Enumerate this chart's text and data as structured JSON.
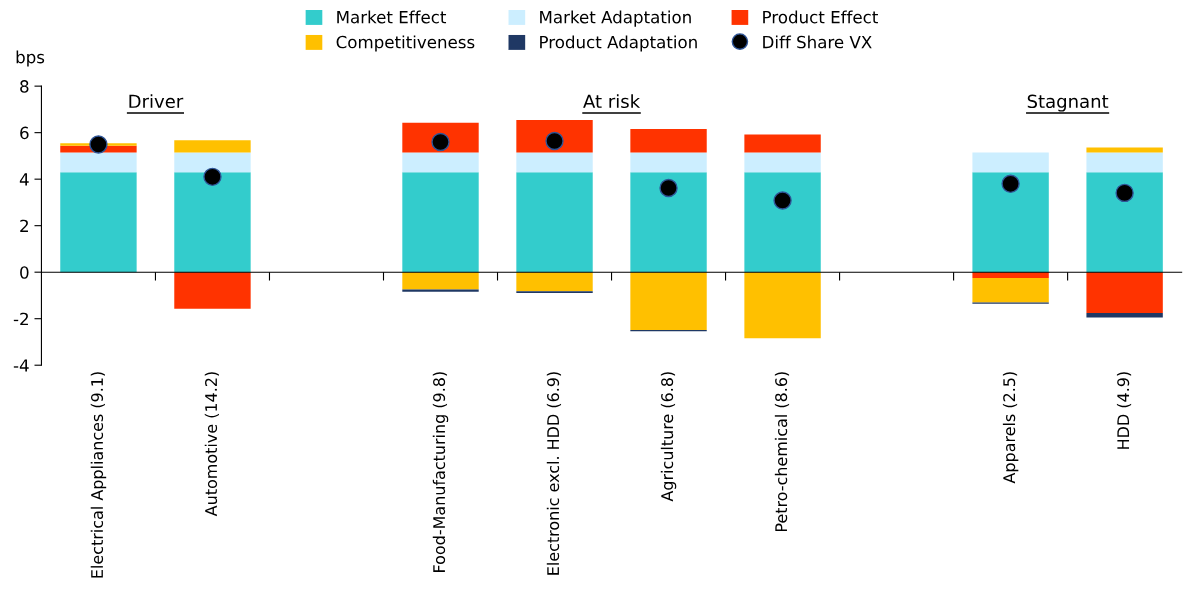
{
  "chart_data": {
    "type": "bar",
    "stacked": true,
    "ylabel": "bps",
    "categories": [
      "Electrical Appliances (9.1)",
      "Automotive (14.2)",
      null,
      "Food-Manufacturing (9.8)",
      "Electronic excl. HDD (6.9)",
      "Agriculture (6.8)",
      "Petro-chemical (8.6)",
      null,
      "Apparels (2.5)",
      "HDD (4.9)"
    ],
    "series": [
      {
        "name": "Market Effect",
        "color": "#33cccc",
        "values": [
          4.3,
          4.3,
          null,
          4.3,
          4.3,
          4.3,
          4.3,
          null,
          4.3,
          4.3
        ]
      },
      {
        "name": "Market Adaptation",
        "color": "#cceeff",
        "values": [
          0.85,
          0.85,
          null,
          0.85,
          0.85,
          0.85,
          0.85,
          null,
          0.85,
          0.85
        ]
      },
      {
        "name": "Product Effect",
        "color": "#ff3300",
        "values": [
          0.29,
          -1.57,
          null,
          1.28,
          1.39,
          1.01,
          0.77,
          null,
          -0.25,
          -1.75
        ]
      },
      {
        "name": "Competitiveness",
        "color": "#ffc000",
        "values": [
          0.1,
          0.52,
          null,
          -0.74,
          -0.82,
          -2.49,
          -2.84,
          null,
          -1.05,
          0.21
        ]
      },
      {
        "name": "Product Adaptation",
        "color": "#1f3864",
        "values": [
          0.0,
          0.0,
          null,
          -0.1,
          -0.07,
          -0.05,
          0.0,
          null,
          -0.06,
          -0.2
        ]
      },
      {
        "name": "Diff Share VX",
        "type": "scatter",
        "color": "#000000",
        "values": [
          5.49,
          4.1,
          null,
          5.6,
          5.64,
          3.62,
          3.08,
          null,
          3.8,
          3.41
        ]
      }
    ],
    "ylim": [
      -4,
      8
    ],
    "yticks": [
      -4,
      -2,
      0,
      2,
      4,
      6,
      8
    ],
    "annotations": [
      "Driver",
      "At risk",
      "Stagnant"
    ],
    "legend": "top",
    "marker": "circle"
  }
}
